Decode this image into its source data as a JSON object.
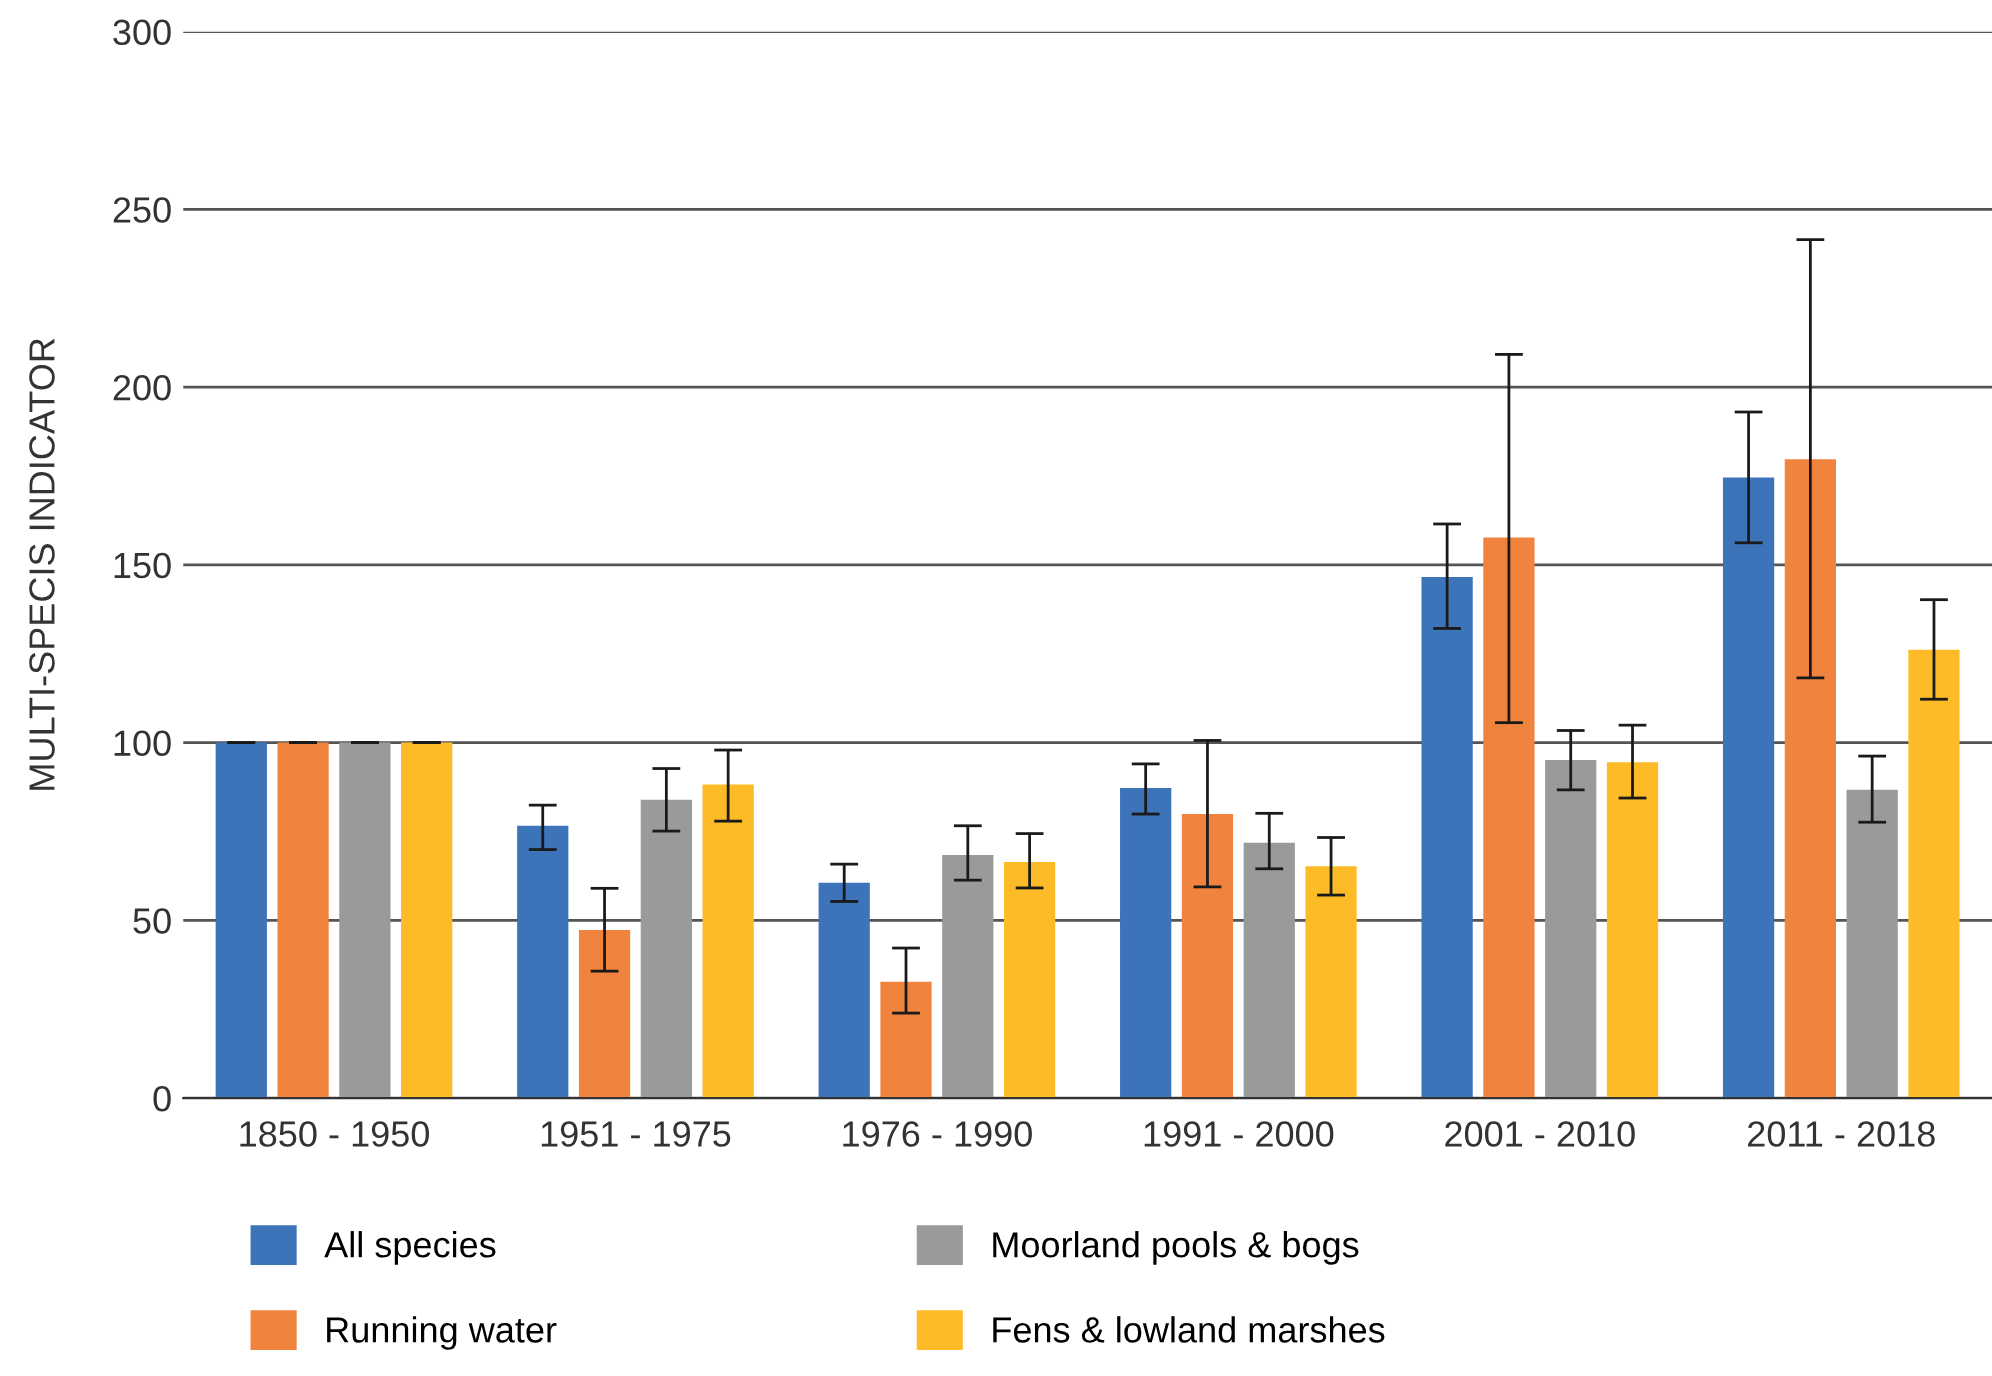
{
  "chart_data": {
    "type": "bar",
    "ylabel": "MULTI-SPECIS INDICATOR",
    "categories": [
      "1850 - 1950",
      "1951 - 1975",
      "1976 - 1990",
      "1991 - 2000",
      "2001 - 2010",
      "2011 - 2018"
    ],
    "series": [
      {
        "name": "All species",
        "color": "#3d73b9",
        "values": [
          100,
          76.6,
          60.6,
          87.2,
          146.6,
          174.6
        ],
        "errors": [
          [
            100,
            100
          ],
          [
            69.9,
            82.4
          ],
          [
            55.3,
            65.8
          ],
          [
            79.9,
            94
          ],
          [
            132.1,
            161.5
          ],
          [
            156.2,
            193
          ]
        ]
      },
      {
        "name": "Running water",
        "color": "#f0833e",
        "values": [
          100,
          47.3,
          32.7,
          79.9,
          157.7,
          179.7
        ],
        "errors": [
          [
            100,
            100
          ],
          [
            35.7,
            59
          ],
          [
            23.9,
            42.2
          ],
          [
            59.4,
            100.6
          ],
          [
            105.6,
            209.2
          ],
          [
            118.2,
            241.5
          ]
        ]
      },
      {
        "name": "Moorland pools & bogs",
        "color": "#999b9b",
        "values": [
          100,
          83.9,
          68.4,
          71.8,
          95.1,
          86.7
        ],
        "errors": [
          [
            100,
            100
          ],
          [
            75.1,
            92.7
          ],
          [
            61.3,
            76.6
          ],
          [
            64.5,
            80.1
          ],
          [
            86.7,
            103.4
          ],
          [
            77.6,
            96.2
          ]
        ]
      },
      {
        "name": "Fens & lowland marshes",
        "color": "#fdbb27",
        "values": [
          100,
          88.2,
          66.4,
          65.2,
          94.5,
          126.1
        ],
        "errors": [
          [
            100,
            100
          ],
          [
            77.9,
            97.9
          ],
          [
            59.1,
            74.4
          ],
          [
            57.1,
            73.3
          ],
          [
            84.4,
            104.9
          ],
          [
            112.2,
            140.2
          ]
        ]
      }
    ],
    "ylim": [
      0,
      300
    ],
    "yticks": [
      0,
      50,
      100,
      150,
      200,
      250,
      300
    ],
    "grid": "y",
    "legend": "bottom"
  }
}
